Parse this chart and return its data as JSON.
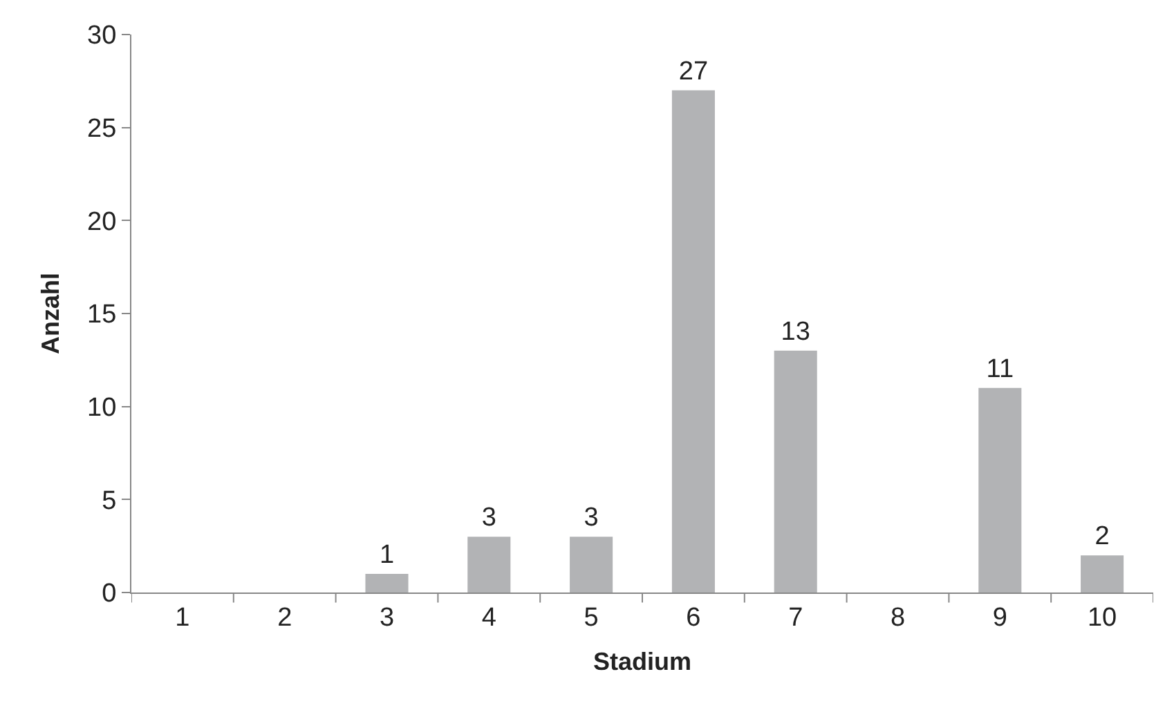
{
  "chart_data": {
    "type": "bar",
    "xlabel": "Stadium",
    "ylabel": "Anzahl",
    "categories": [
      "1",
      "2",
      "3",
      "4",
      "5",
      "6",
      "7",
      "8",
      "9",
      "10"
    ],
    "values": [
      0,
      0,
      1,
      3,
      3,
      27,
      13,
      0,
      11,
      2
    ],
    "value_labels": [
      null,
      null,
      "1",
      "3",
      "3",
      "27",
      "13",
      null,
      "11",
      "2"
    ],
    "color": "#b2b3b5",
    "ylim": [
      0,
      30
    ],
    "yticks": [
      0,
      5,
      10,
      15,
      20,
      25,
      30
    ]
  }
}
